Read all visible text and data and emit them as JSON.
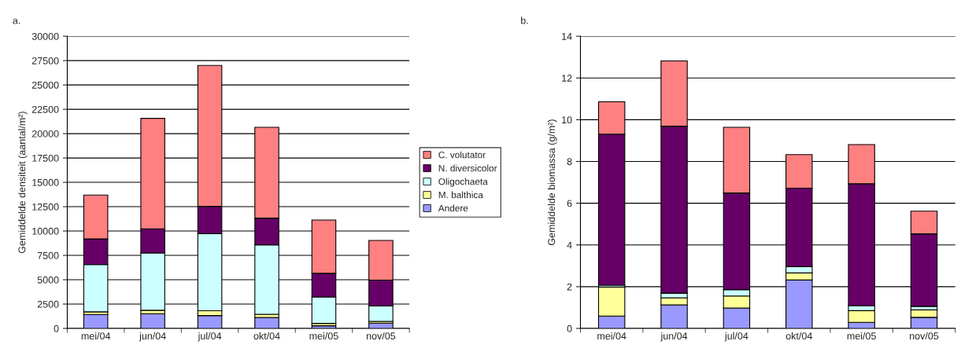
{
  "chart_data": [
    {
      "type": "bar",
      "title": "a.",
      "stacked": true,
      "ylabel": "Gemiddelde densiteit (aantal/m²)",
      "categories": [
        "mei/04",
        "jun/04",
        "jul/04",
        "okt/04",
        "mei/05",
        "nov/05"
      ],
      "ylim": [
        0,
        30000
      ],
      "yticks": [
        0,
        2500,
        5000,
        7500,
        10000,
        12500,
        15000,
        17500,
        20000,
        22500,
        25000,
        27500,
        30000
      ],
      "grid": "y",
      "legend": "right",
      "series": [
        {
          "name": "Andere",
          "color": "#9999ff",
          "values": [
            1430,
            1510,
            1320,
            1130,
            270,
            540
          ]
        },
        {
          "name": "M. balthica",
          "color": "#ffff99",
          "values": [
            270,
            350,
            490,
            320,
            240,
            190
          ]
        },
        {
          "name": "Oligochaeta",
          "color": "#ccffff",
          "values": [
            4850,
            5880,
            7920,
            7120,
            2720,
            1590
          ]
        },
        {
          "name": "N. diversicolor",
          "color": "#660066",
          "values": [
            2640,
            2480,
            2800,
            2750,
            2430,
            2640
          ]
        },
        {
          "name": "C. volutator",
          "color": "#ff8080",
          "values": [
            4500,
            11350,
            14480,
            9330,
            5470,
            4070
          ]
        }
      ]
    },
    {
      "type": "bar",
      "title": "b.",
      "stacked": true,
      "ylabel": "Gemiddelde biomassa (g/m²)",
      "categories": [
        "mei/04",
        "jun/04",
        "jul/04",
        "okt/04",
        "mei/05",
        "nov/05"
      ],
      "ylim": [
        0,
        14
      ],
      "yticks": [
        0,
        2,
        4,
        6,
        8,
        10,
        12,
        14
      ],
      "grid": "y",
      "series": [
        {
          "color": "#9999ff",
          "values": [
            0.59,
            1.13,
            0.98,
            2.32,
            0.29,
            0.53
          ]
        },
        {
          "color": "#ffff99",
          "values": [
            1.39,
            0.34,
            0.57,
            0.34,
            0.56,
            0.36
          ]
        },
        {
          "color": "#ccffff",
          "values": [
            0.09,
            0.22,
            0.31,
            0.3,
            0.24,
            0.17
          ]
        },
        {
          "color": "#660066",
          "values": [
            7.24,
            8.0,
            4.63,
            3.76,
            5.84,
            3.47
          ]
        },
        {
          "color": "#ff8080",
          "values": [
            1.55,
            3.13,
            3.15,
            1.61,
            1.88,
            1.09
          ]
        }
      ]
    }
  ]
}
